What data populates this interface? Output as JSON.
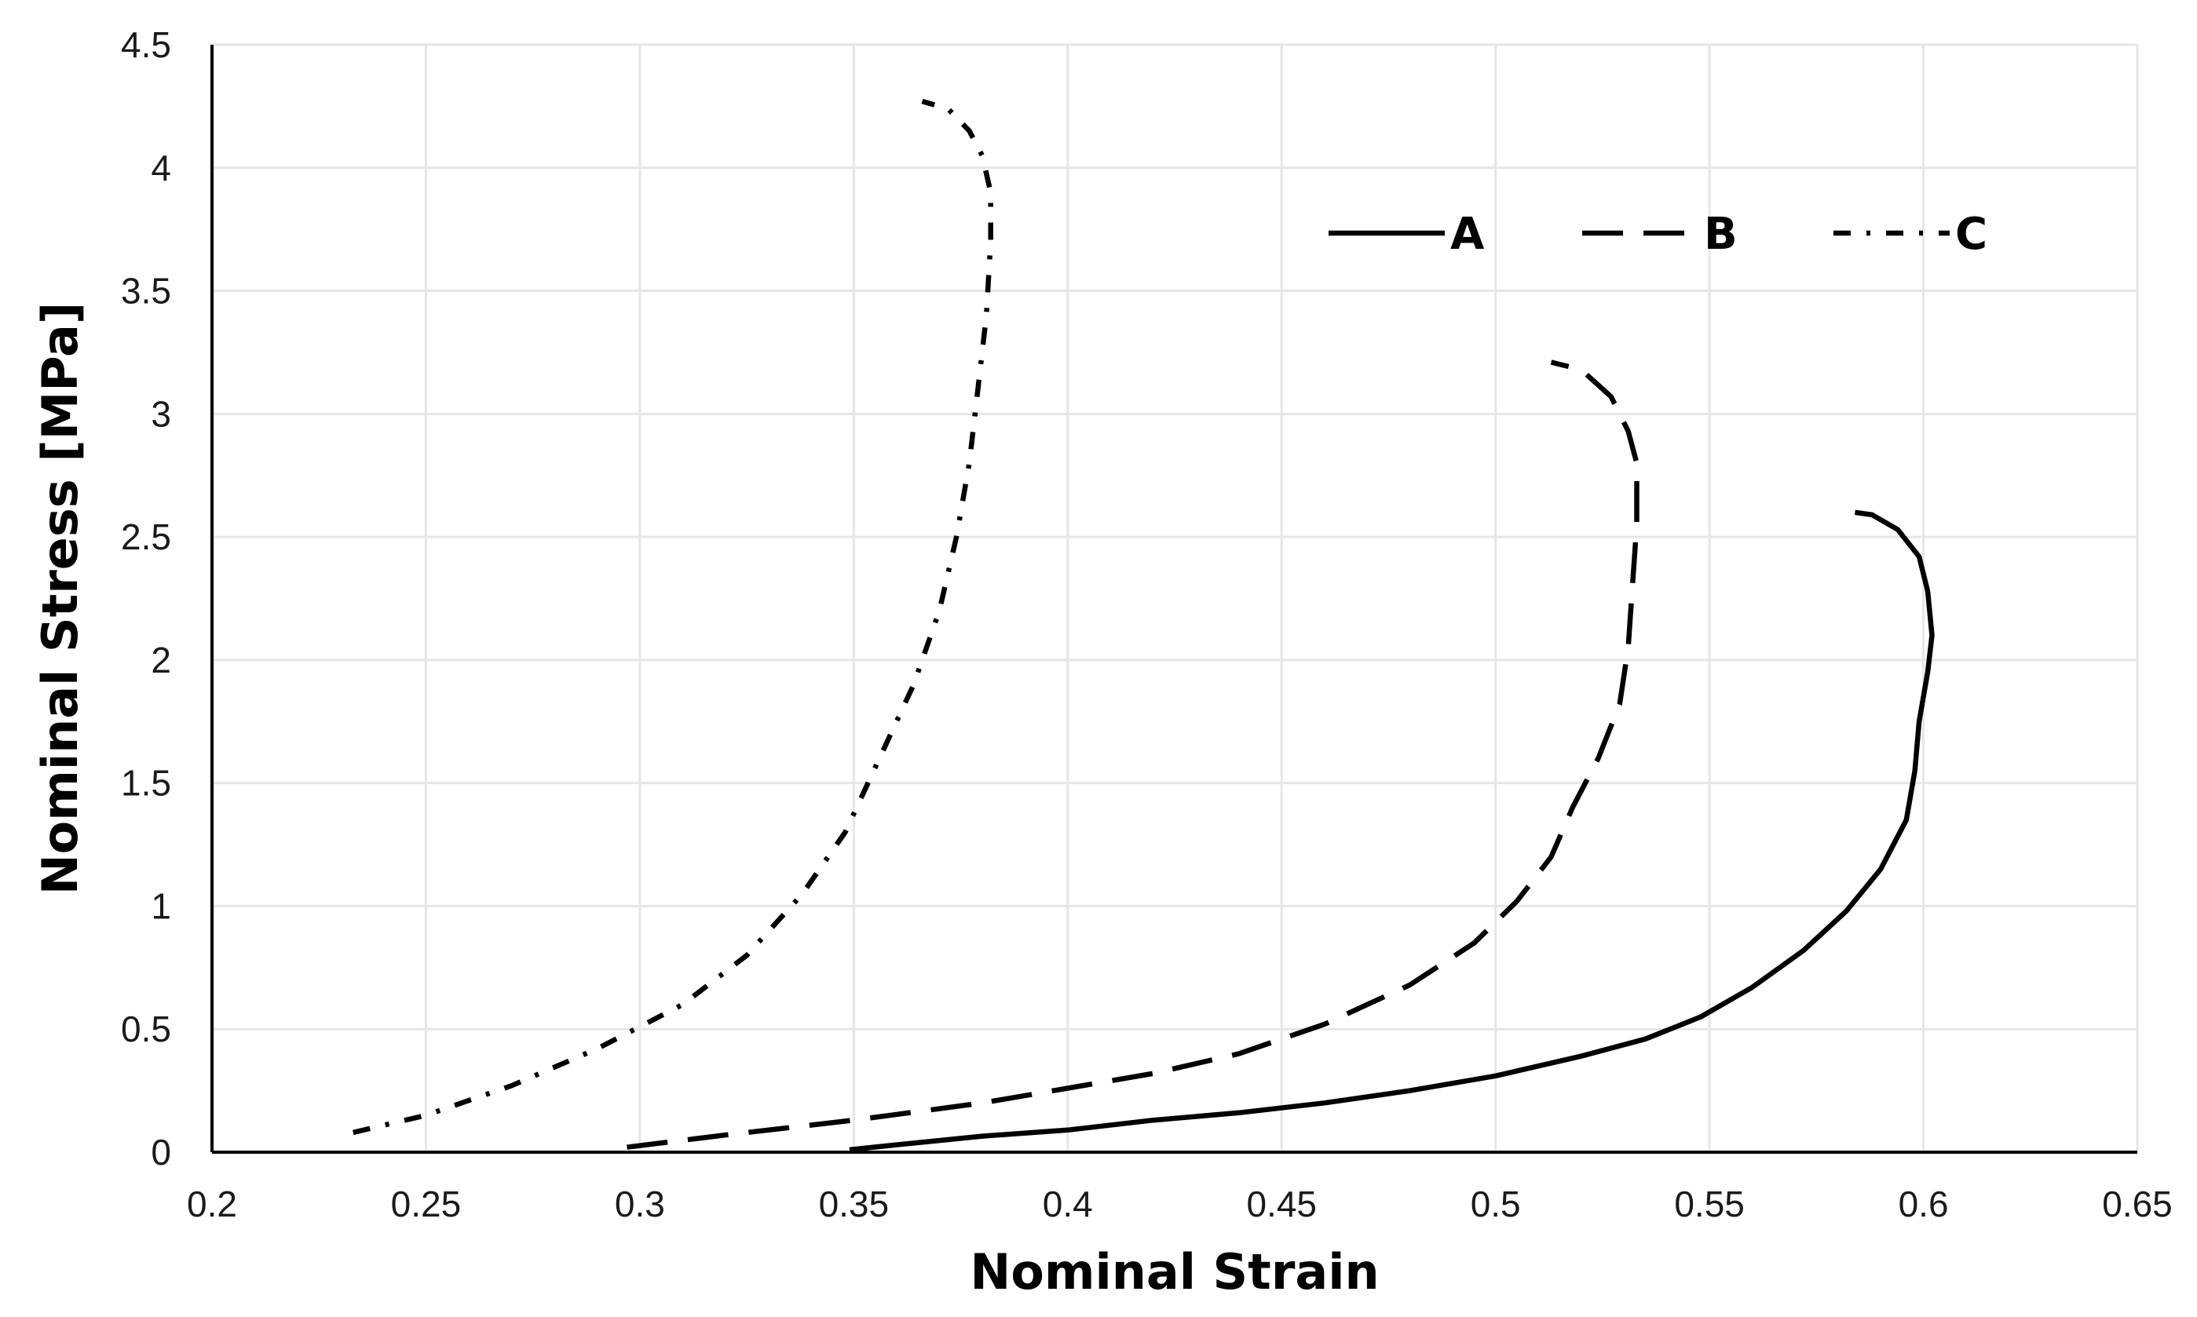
{
  "chart_data": {
    "type": "line",
    "xlabel": "Nominal Strain",
    "ylabel": "Nominal Stress [MPa]",
    "xlim": [
      0.2,
      0.65
    ],
    "ylim": [
      0,
      4.5
    ],
    "x_ticks": [
      "0.2",
      "0.25",
      "0.3",
      "0.35",
      "0.4",
      "0.45",
      "0.5",
      "0.55",
      "0.6",
      "0.65"
    ],
    "y_ticks": [
      "0",
      "0.5",
      "1",
      "1.5",
      "2",
      "2.5",
      "3",
      "3.5",
      "4",
      "4.5"
    ],
    "grid": true,
    "legend_position": "top-right",
    "series": [
      {
        "name": "A",
        "dash": "solid",
        "points": [
          [
            0.349,
            0.01
          ],
          [
            0.36,
            0.03
          ],
          [
            0.38,
            0.065
          ],
          [
            0.4,
            0.09
          ],
          [
            0.42,
            0.13
          ],
          [
            0.44,
            0.16
          ],
          [
            0.46,
            0.2
          ],
          [
            0.48,
            0.25
          ],
          [
            0.5,
            0.31
          ],
          [
            0.52,
            0.39
          ],
          [
            0.535,
            0.46
          ],
          [
            0.548,
            0.55
          ],
          [
            0.56,
            0.67
          ],
          [
            0.572,
            0.82
          ],
          [
            0.582,
            0.98
          ],
          [
            0.59,
            1.15
          ],
          [
            0.596,
            1.35
          ],
          [
            0.598,
            1.55
          ],
          [
            0.599,
            1.75
          ],
          [
            0.601,
            1.95
          ],
          [
            0.602,
            2.1
          ],
          [
            0.601,
            2.28
          ],
          [
            0.599,
            2.42
          ],
          [
            0.594,
            2.53
          ],
          [
            0.588,
            2.59
          ],
          [
            0.584,
            2.6
          ]
        ]
      },
      {
        "name": "B",
        "dash": "long-dash",
        "points": [
          [
            0.297,
            0.02
          ],
          [
            0.32,
            0.07
          ],
          [
            0.35,
            0.13
          ],
          [
            0.38,
            0.2
          ],
          [
            0.4,
            0.26
          ],
          [
            0.42,
            0.32
          ],
          [
            0.44,
            0.4
          ],
          [
            0.46,
            0.52
          ],
          [
            0.48,
            0.68
          ],
          [
            0.495,
            0.85
          ],
          [
            0.505,
            1.02
          ],
          [
            0.513,
            1.2
          ],
          [
            0.518,
            1.4
          ],
          [
            0.524,
            1.6
          ],
          [
            0.529,
            1.82
          ],
          [
            0.531,
            2.05
          ],
          [
            0.532,
            2.3
          ],
          [
            0.533,
            2.55
          ],
          [
            0.533,
            2.8
          ],
          [
            0.531,
            2.93
          ],
          [
            0.527,
            3.07
          ],
          [
            0.52,
            3.18
          ],
          [
            0.513,
            3.21
          ]
        ]
      },
      {
        "name": "C",
        "dash": "dash-dot",
        "points": [
          [
            0.233,
            0.08
          ],
          [
            0.25,
            0.15
          ],
          [
            0.27,
            0.27
          ],
          [
            0.29,
            0.42
          ],
          [
            0.31,
            0.6
          ],
          [
            0.325,
            0.8
          ],
          [
            0.338,
            1.05
          ],
          [
            0.348,
            1.3
          ],
          [
            0.356,
            1.6
          ],
          [
            0.364,
            1.9
          ],
          [
            0.37,
            2.2
          ],
          [
            0.374,
            2.5
          ],
          [
            0.377,
            2.8
          ],
          [
            0.379,
            3.1
          ],
          [
            0.381,
            3.4
          ],
          [
            0.382,
            3.7
          ],
          [
            0.382,
            3.9
          ],
          [
            0.38,
            4.05
          ],
          [
            0.377,
            4.15
          ],
          [
            0.372,
            4.24
          ],
          [
            0.366,
            4.27
          ]
        ]
      }
    ]
  }
}
